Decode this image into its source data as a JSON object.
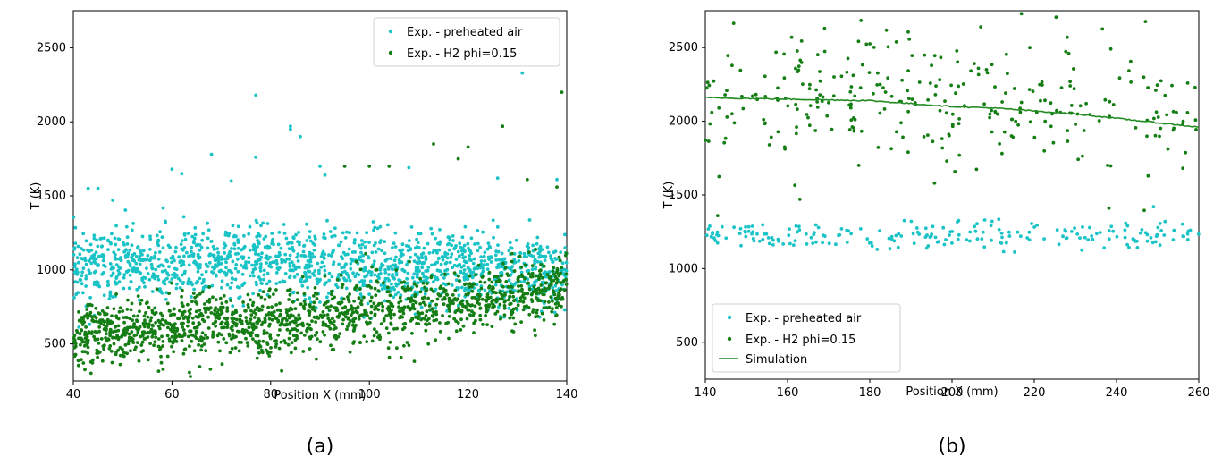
{
  "chart_data": [
    {
      "type": "scatter",
      "panel_label": "(a)",
      "xlabel": "Position X (mm)",
      "ylabel": "T (K)",
      "xlim": [
        40,
        140
      ],
      "ylim": [
        250,
        2750
      ],
      "xticks": [
        40,
        60,
        80,
        100,
        120,
        140
      ],
      "yticks": [
        500,
        1000,
        1500,
        2000,
        2500
      ],
      "legend_position": "top-right",
      "colors": {
        "preheated": "#19c3c6",
        "h2": "#147d14"
      },
      "series": [
        {
          "name": "Exp. - preheated air",
          "color": "#19c3c6",
          "trend": {
            "x": [
              40,
              60,
              80,
              100,
              120,
              140
            ],
            "y": [
              1030,
              1040,
              1050,
              1020,
              1010,
              980
            ]
          },
          "approx_scatter_std": 120,
          "outliers": [
            [
              43,
              1550
            ],
            [
              45,
              1550
            ],
            [
              48,
              1470
            ],
            [
              60,
              1680
            ],
            [
              62,
              1650
            ],
            [
              68,
              1780
            ],
            [
              72,
              1600
            ],
            [
              77,
              2180
            ],
            [
              77,
              1760
            ],
            [
              84,
              1970
            ],
            [
              84,
              1950
            ],
            [
              86,
              1900
            ],
            [
              90,
              1700
            ],
            [
              91,
              1640
            ],
            [
              108,
              1690
            ],
            [
              126,
              1620
            ],
            [
              131,
              2330
            ],
            [
              138,
              1610
            ]
          ]
        },
        {
          "name": "Exp. - H2 phi=0.15",
          "color": "#147d14",
          "trend": {
            "x": [
              40,
              60,
              80,
              100,
              120,
              140
            ],
            "y": [
              560,
              610,
              640,
              720,
              780,
              880
            ]
          },
          "approx_scatter_std": 110,
          "outliers": [
            [
              95,
              1700
            ],
            [
              100,
              1700
            ],
            [
              104,
              1700
            ],
            [
              113,
              1850
            ],
            [
              118,
              1750
            ],
            [
              120,
              1830
            ],
            [
              127,
              1970
            ],
            [
              139,
              2200
            ],
            [
              138,
              1560
            ],
            [
              132,
              1610
            ]
          ]
        }
      ]
    },
    {
      "type": "scatter",
      "panel_label": "(b)",
      "xlabel": "Position X (mm)",
      "ylabel": "T (K)",
      "xlim": [
        140,
        260
      ],
      "ylim": [
        250,
        2750
      ],
      "xticks": [
        140,
        160,
        180,
        200,
        220,
        240,
        260
      ],
      "yticks": [
        500,
        1000,
        1500,
        2000,
        2500
      ],
      "legend_position": "bottom-left",
      "series": [
        {
          "name": "Exp. - preheated air",
          "color": "#19c3c6",
          "trend": {
            "x": [
              140,
              260
            ],
            "y": [
              1220,
              1225
            ]
          },
          "approx_scatter_std": 45,
          "outliers": [
            [
              249,
              1420
            ]
          ]
        },
        {
          "name": "Exp. - H2 phi=0.15",
          "color": "#147d14",
          "trend": {
            "x": [
              140,
              260
            ],
            "y": [
              2150,
              2100
            ]
          },
          "approx_scatter_std": 230,
          "outliers": [
            [
              169,
              2630
            ],
            [
              207,
              2640
            ],
            [
              161,
              2570
            ],
            [
              228,
              2570
            ],
            [
              163,
              1470
            ],
            [
              143,
              1360
            ]
          ]
        },
        {
          "name": "Simulation",
          "color": "#228b22",
          "type": "line",
          "x": [
            140,
            160,
            170,
            180,
            190,
            200,
            210,
            220,
            230,
            240,
            250,
            260
          ],
          "y": [
            2160,
            2150,
            2145,
            2140,
            2120,
            2100,
            2090,
            2070,
            2050,
            2020,
            1990,
            1960
          ]
        }
      ]
    }
  ]
}
